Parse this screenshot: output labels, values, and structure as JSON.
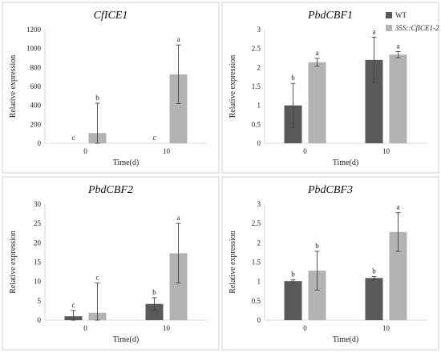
{
  "colors": {
    "wt": "#595959",
    "transgenic": "#b3b3b3"
  },
  "chart_data": [
    {
      "type": "bar",
      "title": "CfICE1",
      "xlabel": "Time(d)",
      "ylabel": "Relative expression",
      "categories": [
        "0",
        "10"
      ],
      "ylim": [
        0,
        1200
      ],
      "yticks": [
        0,
        200,
        400,
        600,
        800,
        1000,
        1200
      ],
      "legend": null,
      "series": [
        {
          "name": "WT",
          "values": [
            0,
            0
          ],
          "errors": [
            0,
            0
          ],
          "letters": [
            "c",
            "c"
          ]
        },
        {
          "name": "35S::CfICE1-2",
          "values": [
            108,
            728
          ],
          "errors": [
            315,
            310
          ],
          "letters": [
            "b",
            "a"
          ]
        }
      ]
    },
    {
      "type": "bar",
      "title": "PbdCBF1",
      "xlabel": "Time(d)",
      "ylabel": "Relative expression",
      "categories": [
        "0",
        "10"
      ],
      "ylim": [
        0,
        3
      ],
      "yticks": [
        0,
        0.5,
        1,
        1.5,
        2,
        2.5,
        3
      ],
      "legend": "top-right",
      "series": [
        {
          "name": "WT",
          "values": [
            1.0,
            2.2
          ],
          "errors": [
            0.58,
            0.6
          ],
          "letters": [
            "b",
            "a"
          ]
        },
        {
          "name": "35S::CfICE1-2",
          "values": [
            2.14,
            2.34
          ],
          "errors": [
            0.1,
            0.08
          ],
          "letters": [
            "a",
            "a"
          ]
        }
      ]
    },
    {
      "type": "bar",
      "title": "PbdCBF2",
      "xlabel": "Time(d)",
      "ylabel": "Relative expression",
      "categories": [
        "0",
        "10"
      ],
      "ylim": [
        0,
        30
      ],
      "yticks": [
        0,
        5,
        10,
        15,
        20,
        25,
        30
      ],
      "legend": null,
      "series": [
        {
          "name": "WT",
          "values": [
            1.0,
            4.2
          ],
          "errors": [
            1.5,
            1.6
          ],
          "letters": [
            "c",
            "b"
          ]
        },
        {
          "name": "35S::CfICE1-2",
          "values": [
            1.9,
            17.3
          ],
          "errors": [
            7.7,
            7.7
          ],
          "letters": [
            "c",
            "a"
          ]
        }
      ]
    },
    {
      "type": "bar",
      "title": "PbdCBF3",
      "xlabel": "Time(d)",
      "ylabel": "Relative expression",
      "categories": [
        "0",
        "10"
      ],
      "ylim": [
        0,
        3
      ],
      "yticks": [
        0,
        0.5,
        1,
        1.5,
        2,
        2.5,
        3
      ],
      "legend": null,
      "series": [
        {
          "name": "WT",
          "values": [
            1.01,
            1.09
          ],
          "errors": [
            0.03,
            0.04
          ],
          "letters": [
            "b",
            "b"
          ]
        },
        {
          "name": "35S::CfICE1-2",
          "values": [
            1.28,
            2.28
          ],
          "errors": [
            0.5,
            0.5
          ],
          "letters": [
            "b",
            "a"
          ]
        }
      ]
    }
  ]
}
